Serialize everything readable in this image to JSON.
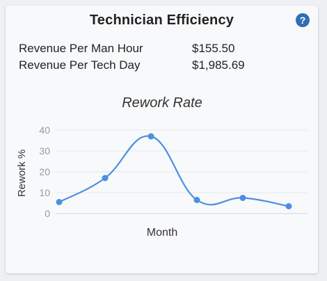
{
  "card": {
    "title": "Technician Efficiency",
    "help_icon": "question-circle-icon",
    "accent_color": "#2f6fb3"
  },
  "metrics": [
    {
      "label": "Revenue Per Man Hour",
      "value": "$155.50"
    },
    {
      "label": "Revenue Per Tech Day",
      "value": "$1,985.69"
    }
  ],
  "chart_data": {
    "type": "line",
    "title": "Rework Rate",
    "xlabel": "Month",
    "ylabel": "Rework %",
    "ylim": [
      0,
      40
    ],
    "yticks": [
      0,
      10,
      20,
      30,
      40
    ],
    "grid": true,
    "legend": "none",
    "line_color": "#4a90e2",
    "series": [
      {
        "values": [
          5.5,
          17,
          37,
          6.5,
          7.5,
          3.5
        ]
      }
    ]
  }
}
